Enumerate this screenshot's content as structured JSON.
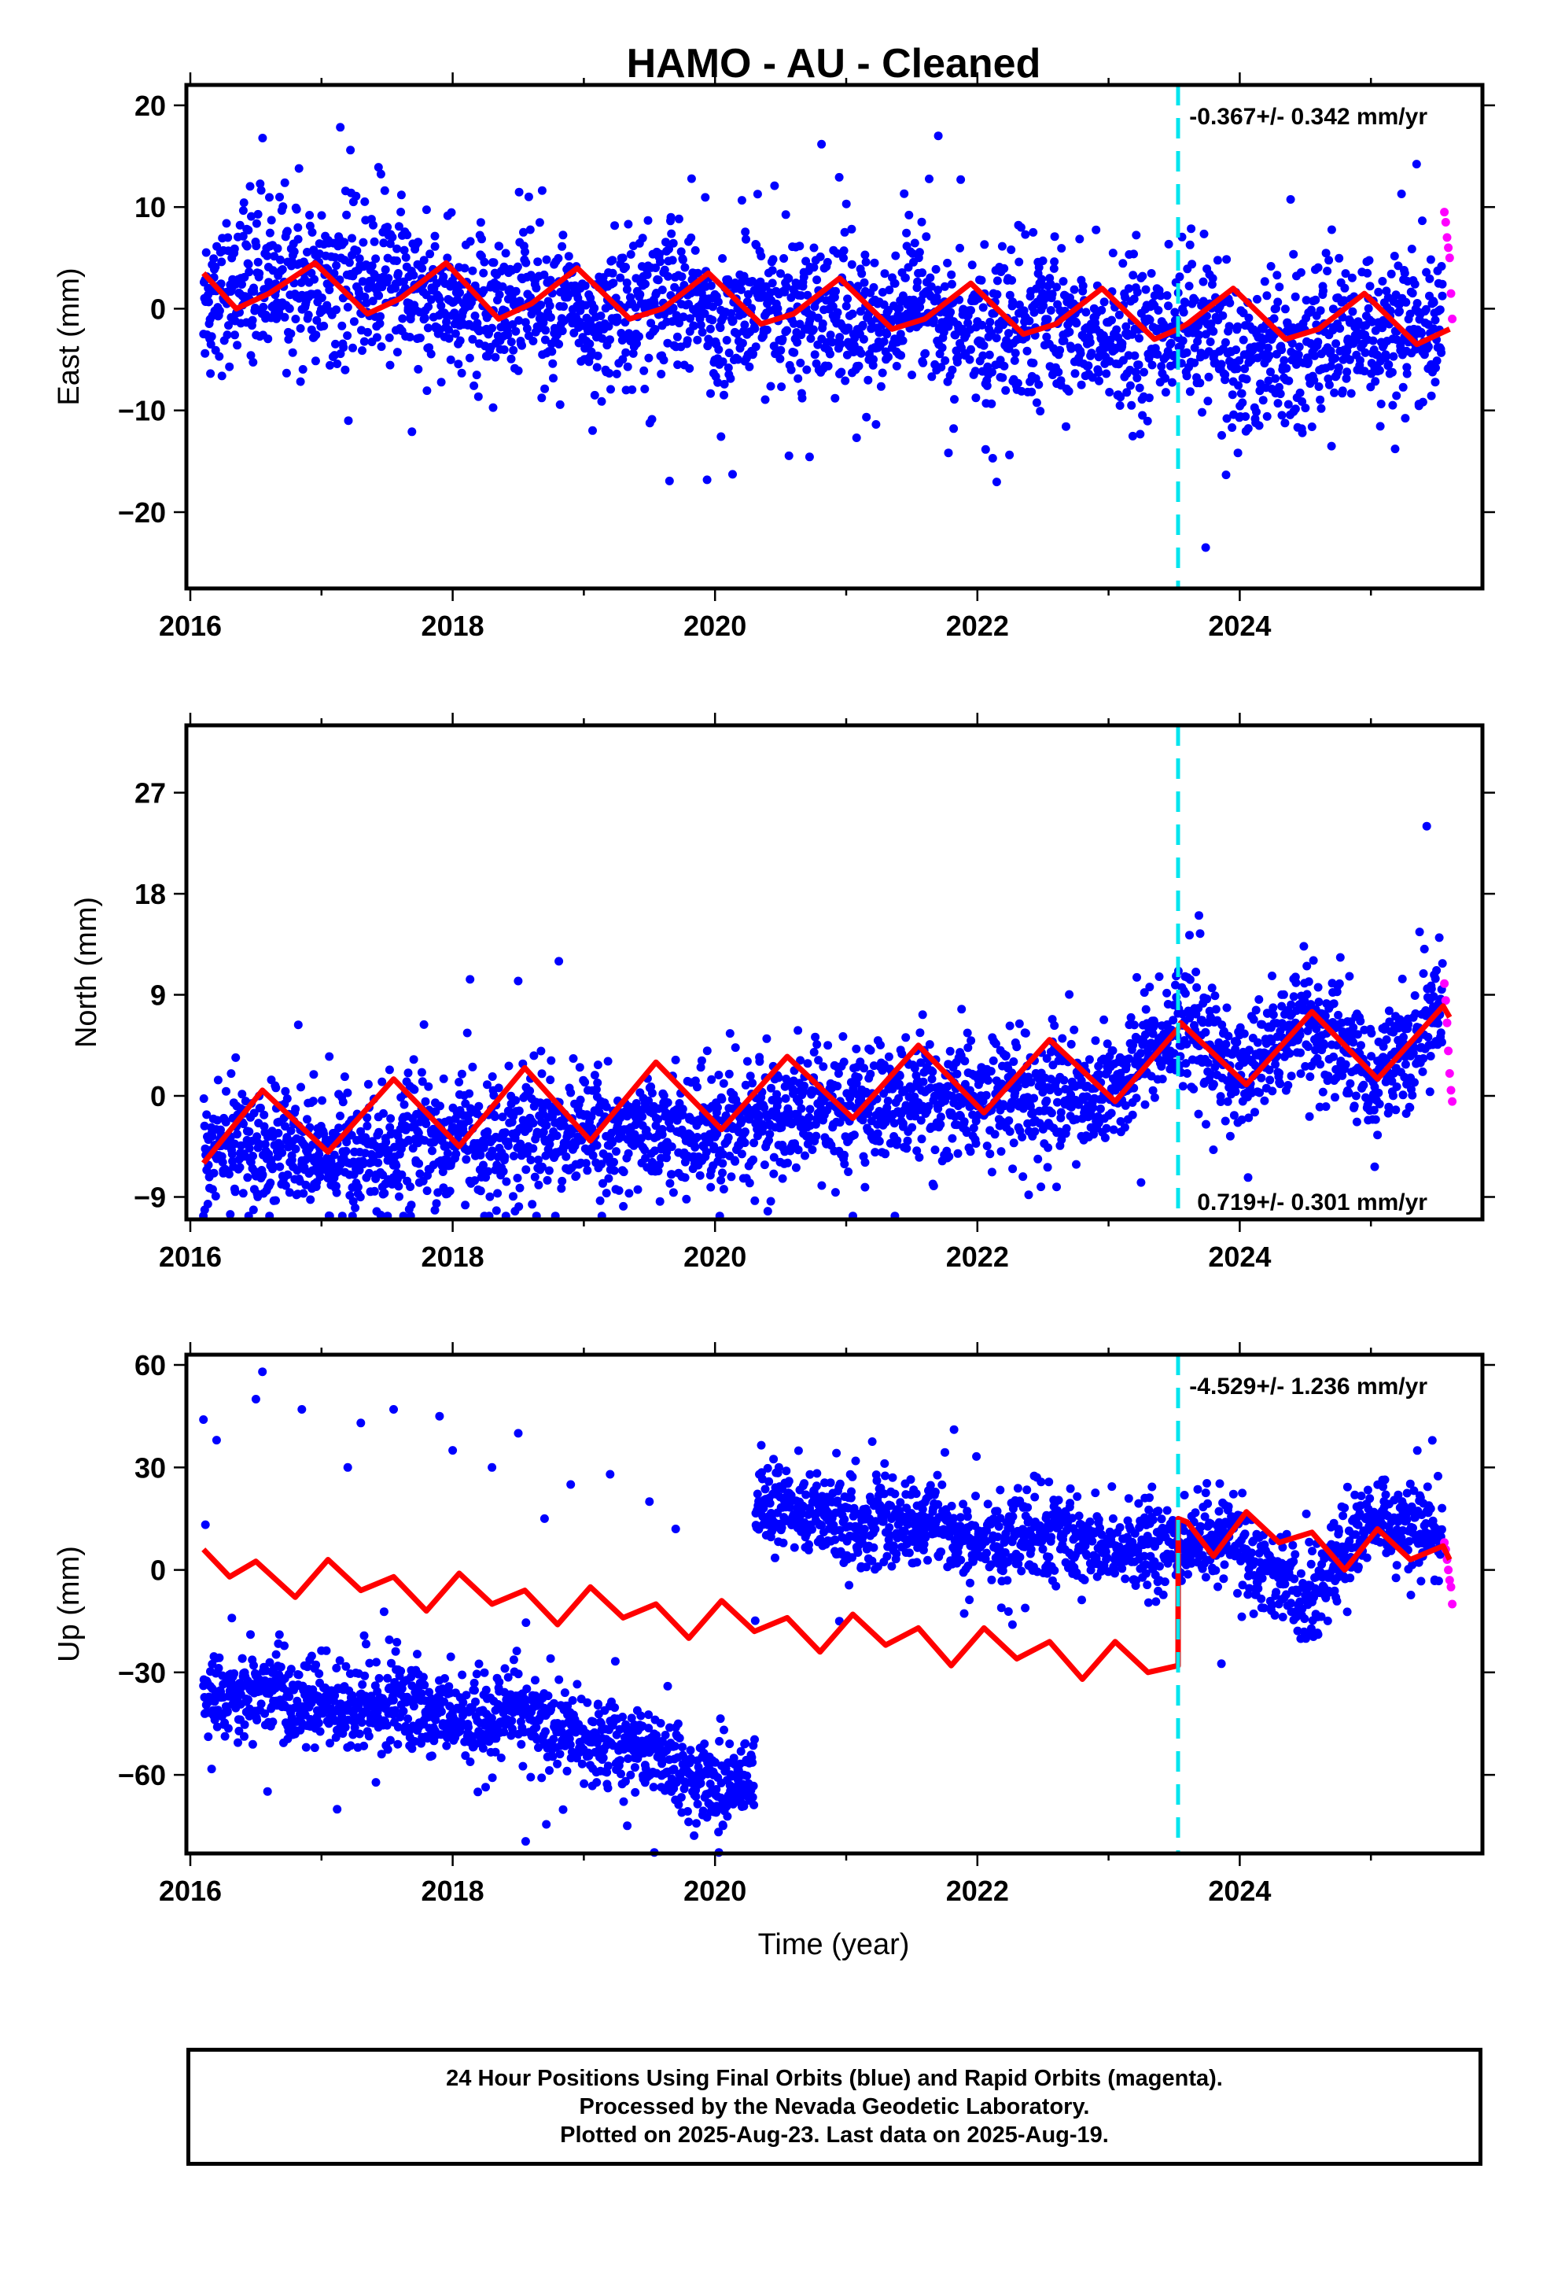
{
  "title": "HAMO  - AU - Cleaned",
  "colors": {
    "final": "#0000ff",
    "rapid": "#ff00ff",
    "model": "#ff0000",
    "event_line": "#00e5ee"
  },
  "footer": {
    "line1": "24 Hour Positions Using Final Orbits (blue) and Rapid Orbits (magenta).",
    "line2": "Processed by the Nevada Geodetic Laboratory.",
    "line3": "Plotted on 2025-Aug-23. Last data on 2025-Aug-19."
  },
  "chart_data": [
    {
      "type": "scatter",
      "ylabel": "East (mm)",
      "rate_text": "-0.367+/- 0.342 mm/yr",
      "xlim": [
        2015.97,
        2025.85
      ],
      "ylim": [
        -27.5,
        22
      ],
      "xticks": [
        "2016",
        "2018",
        "2020",
        "2022",
        "2024"
      ],
      "yticks": [
        "20",
        "10",
        "0",
        "−10",
        "−20"
      ],
      "event_x": 2023.53,
      "series": [
        {
          "name": "Final Orbits (blue)",
          "x_range": [
            2016.1,
            2025.55
          ],
          "median_trend": [
            [
              2016.1,
              2.0
            ],
            [
              2017.0,
              3.0
            ],
            [
              2018.0,
              0.5
            ],
            [
              2020.0,
              0.0
            ],
            [
              2022.0,
              -1.5
            ],
            [
              2023.53,
              -3.0
            ],
            [
              2024.5,
              -4.0
            ],
            [
              2025.55,
              -1.5
            ]
          ],
          "scatter_sd": 3.5
        },
        {
          "name": "Rapid Orbits (magenta)",
          "x": [
            2025.56,
            2025.57,
            2025.58,
            2025.59,
            2025.6,
            2025.61,
            2025.62
          ],
          "y": [
            9.5,
            8.5,
            7.0,
            6.0,
            5.0,
            1.5,
            -1.0
          ]
        },
        {
          "name": "Model",
          "points": [
            [
              2016.1,
              3.5
            ],
            [
              2016.35,
              0.0
            ],
            [
              2016.6,
              1.5
            ],
            [
              2016.95,
              4.5
            ],
            [
              2017.35,
              -0.5
            ],
            [
              2017.6,
              1.0
            ],
            [
              2017.95,
              4.5
            ],
            [
              2018.35,
              -1.0
            ],
            [
              2018.6,
              0.5
            ],
            [
              2018.95,
              4.0
            ],
            [
              2019.35,
              -1.0
            ],
            [
              2019.6,
              0.0
            ],
            [
              2019.95,
              3.5
            ],
            [
              2020.35,
              -1.5
            ],
            [
              2020.6,
              -0.5
            ],
            [
              2020.95,
              3.0
            ],
            [
              2021.35,
              -2.0
            ],
            [
              2021.6,
              -1.0
            ],
            [
              2021.95,
              2.5
            ],
            [
              2022.35,
              -2.5
            ],
            [
              2022.6,
              -1.5
            ],
            [
              2022.95,
              2.0
            ],
            [
              2023.35,
              -3.0
            ],
            [
              2023.53,
              -2.0
            ],
            [
              2023.6,
              -1.5
            ],
            [
              2023.95,
              2.0
            ],
            [
              2024.35,
              -3.0
            ],
            [
              2024.6,
              -2.0
            ],
            [
              2024.95,
              1.5
            ],
            [
              2025.35,
              -3.5
            ],
            [
              2025.6,
              -2.0
            ]
          ]
        }
      ]
    },
    {
      "type": "scatter",
      "ylabel": "North (mm)",
      "rate_text": "0.719+/- 0.301 mm/yr",
      "xlim": [
        2015.97,
        2025.85
      ],
      "ylim": [
        -11,
        33
      ],
      "xticks": [
        "2016",
        "2018",
        "2020",
        "2022",
        "2024"
      ],
      "yticks": [
        "27",
        "18",
        "9",
        "0",
        "−9"
      ],
      "event_x": 2023.53,
      "series": [
        {
          "name": "Final Orbits (blue)",
          "x_range": [
            2016.1,
            2025.55
          ],
          "median_trend": [
            [
              2016.1,
              -4.5
            ],
            [
              2017.0,
              -5.0
            ],
            [
              2018.0,
              -4.0
            ],
            [
              2019.0,
              -3.0
            ],
            [
              2020.0,
              -3.0
            ],
            [
              2021.0,
              -1.0
            ],
            [
              2022.0,
              0.0
            ],
            [
              2023.0,
              0.5
            ],
            [
              2023.53,
              6.5
            ],
            [
              2024.0,
              2.0
            ],
            [
              2024.5,
              7.0
            ],
            [
              2025.0,
              1.5
            ],
            [
              2025.55,
              8.0
            ]
          ],
          "scatter_sd": 2.5
        },
        {
          "name": "Rapid Orbits (magenta)",
          "x": [
            2025.56,
            2025.57,
            2025.58,
            2025.59,
            2025.6,
            2025.61,
            2025.62
          ],
          "y": [
            10.0,
            8.5,
            6.5,
            4.0,
            2.0,
            0.5,
            -0.5
          ]
        },
        {
          "name": "Model",
          "points": [
            [
              2016.1,
              -6.0
            ],
            [
              2016.55,
              0.5
            ],
            [
              2017.05,
              -5.0
            ],
            [
              2017.55,
              1.5
            ],
            [
              2018.05,
              -4.5
            ],
            [
              2018.55,
              2.5
            ],
            [
              2019.05,
              -4.0
            ],
            [
              2019.55,
              3.0
            ],
            [
              2020.05,
              -3.0
            ],
            [
              2020.55,
              3.5
            ],
            [
              2021.05,
              -2.0
            ],
            [
              2021.55,
              4.5
            ],
            [
              2022.05,
              -1.5
            ],
            [
              2022.55,
              5.0
            ],
            [
              2023.05,
              -0.5
            ],
            [
              2023.53,
              6.0
            ],
            [
              2023.55,
              6.5
            ],
            [
              2024.05,
              1.0
            ],
            [
              2024.55,
              7.5
            ],
            [
              2025.05,
              1.5
            ],
            [
              2025.55,
              8.0
            ],
            [
              2025.6,
              7.0
            ]
          ]
        }
      ]
    },
    {
      "type": "scatter",
      "xlabel": "Time (year)",
      "ylabel": "Up (mm)",
      "rate_text": "-4.529+/- 1.236 mm/yr",
      "xlim": [
        2015.97,
        2025.85
      ],
      "ylim": [
        -83,
        63
      ],
      "xticks": [
        "2016",
        "2018",
        "2020",
        "2022",
        "2024"
      ],
      "yticks": [
        "60",
        "30",
        "0",
        "−30",
        "−60"
      ],
      "event_x": 2023.53,
      "series": [
        {
          "name": "Final Orbits (blue)",
          "x_range": [
            2016.1,
            2025.55
          ],
          "median_trend": [
            [
              2016.1,
              -35.0
            ],
            [
              2017.0,
              -38.0
            ],
            [
              2018.0,
              -42.0
            ],
            [
              2019.0,
              -48.0
            ],
            [
              2019.8,
              -60.0
            ],
            [
              2020.3,
              -62.0
            ],
            [
              2020.31,
              18.0
            ],
            [
              2021.0,
              15.0
            ],
            [
              2022.0,
              10.0
            ],
            [
              2023.0,
              8.0
            ],
            [
              2023.53,
              5.0
            ],
            [
              2024.0,
              10.0
            ],
            [
              2024.5,
              -10.0
            ],
            [
              2025.0,
              15.0
            ],
            [
              2025.55,
              8.0
            ]
          ],
          "scatter_sd": 6.0,
          "outliers": [
            [
              2016.1,
              44
            ],
            [
              2016.2,
              38
            ],
            [
              2016.5,
              50
            ],
            [
              2016.55,
              58
            ],
            [
              2016.85,
              47
            ],
            [
              2017.3,
              43
            ],
            [
              2017.55,
              47
            ],
            [
              2017.9,
              45
            ],
            [
              2018.0,
              35
            ],
            [
              2018.3,
              30
            ],
            [
              2018.5,
              40
            ],
            [
              2018.9,
              25
            ],
            [
              2019.2,
              28
            ],
            [
              2019.5,
              20
            ],
            [
              2019.7,
              12
            ],
            [
              2018.7,
              15
            ],
            [
              2017.2,
              30
            ]
          ]
        },
        {
          "name": "Rapid Orbits (magenta)",
          "x": [
            2025.56,
            2025.57,
            2025.58,
            2025.59,
            2025.6,
            2025.61,
            2025.62
          ],
          "y": [
            8.0,
            6.0,
            3.0,
            0.0,
            -3.0,
            -5.0,
            -10.0
          ]
        },
        {
          "name": "Model",
          "points": [
            [
              2016.1,
              6.0
            ],
            [
              2016.3,
              -2.0
            ],
            [
              2016.5,
              2.5
            ],
            [
              2016.8,
              -8.0
            ],
            [
              2017.05,
              3.0
            ],
            [
              2017.3,
              -6.0
            ],
            [
              2017.55,
              -2.0
            ],
            [
              2017.8,
              -12.0
            ],
            [
              2018.05,
              -1.0
            ],
            [
              2018.3,
              -10.0
            ],
            [
              2018.55,
              -6.0
            ],
            [
              2018.8,
              -16.0
            ],
            [
              2019.05,
              -5.0
            ],
            [
              2019.3,
              -14.0
            ],
            [
              2019.55,
              -10.0
            ],
            [
              2019.8,
              -20.0
            ],
            [
              2020.05,
              -9.0
            ],
            [
              2020.3,
              -18.0
            ],
            [
              2020.55,
              -14.0
            ],
            [
              2020.8,
              -24.0
            ],
            [
              2021.05,
              -13.0
            ],
            [
              2021.3,
              -22.0
            ],
            [
              2021.55,
              -17.0
            ],
            [
              2021.8,
              -28.0
            ],
            [
              2022.05,
              -17.0
            ],
            [
              2022.3,
              -26.0
            ],
            [
              2022.55,
              -21.0
            ],
            [
              2022.8,
              -32.0
            ],
            [
              2023.05,
              -21.0
            ],
            [
              2023.3,
              -30.0
            ],
            [
              2023.53,
              -28.0
            ],
            [
              2023.531,
              15.0
            ],
            [
              2023.6,
              14.0
            ],
            [
              2023.8,
              4.0
            ],
            [
              2024.05,
              17.0
            ],
            [
              2024.3,
              8.0
            ],
            [
              2024.55,
              11.0
            ],
            [
              2024.8,
              0.0
            ],
            [
              2025.05,
              12.0
            ],
            [
              2025.3,
              3.0
            ],
            [
              2025.55,
              7.0
            ],
            [
              2025.6,
              3.0
            ]
          ]
        }
      ]
    }
  ]
}
